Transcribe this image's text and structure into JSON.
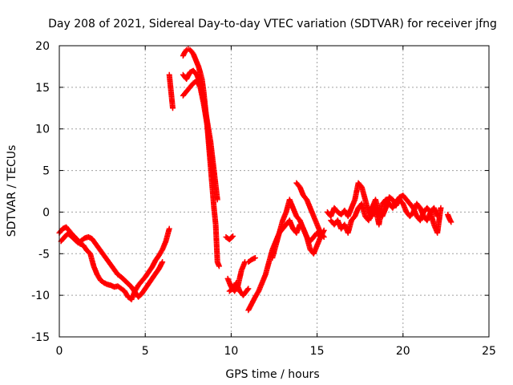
{
  "chart_data": {
    "type": "scatter",
    "title": "Day 208 of 2021, Sidereal Day-to-day VTEC variation (SDTVAR) for receiver jfng",
    "xlabel": "GPS time / hours",
    "ylabel": "SDTVAR / TECUs",
    "xlim": [
      0,
      25
    ],
    "ylim": [
      -15,
      20
    ],
    "xticks": [
      0,
      5,
      10,
      15,
      20,
      25
    ],
    "yticks": [
      -15,
      -10,
      -5,
      0,
      5,
      10,
      15,
      20
    ],
    "grid": true,
    "marker": "+",
    "color": "#ff0000",
    "series": [
      {
        "name": "SDTVAR",
        "segments": [
          {
            "x": [
              0.0,
              0.2,
              0.4,
              0.6,
              0.8,
              1.0,
              1.2,
              1.4,
              1.6,
              1.8,
              2.0,
              2.2,
              2.4,
              2.6,
              2.8,
              3.0,
              3.2,
              3.4,
              3.6,
              3.8,
              4.0,
              4.2,
              4.4,
              4.6,
              4.8,
              5.0,
              5.2,
              5.4,
              5.6,
              5.8,
              6.0,
              6.2,
              6.4
            ],
            "y": [
              -2.5,
              -2.0,
              -1.8,
              -2.3,
              -2.8,
              -3.2,
              -3.8,
              -4.0,
              -4.6,
              -5.0,
              -6.5,
              -7.5,
              -8.2,
              -8.5,
              -8.7,
              -8.8,
              -9.0,
              -8.9,
              -9.2,
              -9.5,
              -10.2,
              -10.5,
              -9.5,
              -8.8,
              -8.3,
              -7.8,
              -7.2,
              -6.6,
              -5.8,
              -5.2,
              -4.5,
              -3.5,
              -2.0
            ]
          },
          {
            "x": [
              0.1,
              0.3,
              0.5,
              0.7,
              0.9,
              1.1,
              1.3,
              1.5,
              1.7,
              1.9,
              3.4,
              3.6,
              3.8,
              4.0,
              4.2,
              4.4,
              4.6,
              4.8,
              5.0,
              5.2,
              5.4,
              5.6,
              5.8,
              6.0
            ],
            "y": [
              -3.5,
              -3.0,
              -2.6,
              -2.9,
              -3.3,
              -3.7,
              -3.4,
              -3.1,
              -3.0,
              -3.2,
              -7.5,
              -7.8,
              -8.2,
              -8.6,
              -9.0,
              -9.6,
              -10.2,
              -9.8,
              -9.2,
              -8.6,
              -8.0,
              -7.4,
              -6.8,
              -6.0
            ]
          },
          {
            "x": [
              6.4,
              6.5,
              6.6
            ],
            "y": [
              16.5,
              14.5,
              12.5
            ]
          },
          {
            "x": [
              7.2,
              7.3,
              7.4,
              7.5,
              7.6,
              7.7,
              7.8,
              7.9,
              8.0,
              8.1,
              8.2,
              8.3,
              8.4,
              8.5,
              8.6,
              8.7,
              8.8,
              8.9,
              9.0,
              9.1,
              9.2,
              9.3
            ],
            "y": [
              18.8,
              19.2,
              19.5,
              19.6,
              19.5,
              19.3,
              19.0,
              18.5,
              18.0,
              17.5,
              16.8,
              16.0,
              14.5,
              12.5,
              10.5,
              8.0,
              5.5,
              3.0,
              0.5,
              -1.5,
              -6.0,
              -6.5
            ]
          },
          {
            "x": [
              7.2,
              7.4,
              7.6,
              7.8,
              8.0,
              8.2,
              8.4,
              8.6,
              8.8,
              9.0,
              9.2
            ],
            "y": [
              16.5,
              16.0,
              16.8,
              17.0,
              16.5,
              15.5,
              13.5,
              11.0,
              8.5,
              5.0,
              1.5
            ]
          },
          {
            "x": [
              7.2,
              7.4,
              7.6,
              7.8,
              8.0,
              8.2,
              8.4,
              8.6,
              8.8,
              9.0
            ],
            "y": [
              14.0,
              14.5,
              15.0,
              15.5,
              15.8,
              15.0,
              13.0,
              10.5,
              7.0,
              3.5
            ]
          },
          {
            "x": [
              9.7,
              9.9,
              10.1
            ],
            "y": [
              -3.0,
              -3.3,
              -2.9
            ]
          },
          {
            "x": [
              9.8,
              10.0,
              10.2,
              10.4,
              10.6,
              10.8
            ],
            "y": [
              -8.0,
              -9.0,
              -9.5,
              -8.8,
              -7.0,
              -6.0
            ]
          },
          {
            "x": [
              9.9,
              10.1,
              10.3,
              10.5,
              10.7,
              11.0
            ],
            "y": [
              -9.5,
              -9.2,
              -8.5,
              -9.5,
              -10.0,
              -9.2
            ]
          },
          {
            "x": [
              11.0,
              11.2,
              11.4,
              11.6,
              11.8,
              12.0,
              12.2,
              12.4,
              12.6,
              12.8,
              13.0,
              13.2,
              13.4,
              13.6,
              13.8,
              14.0,
              14.2,
              14.4,
              14.6,
              14.8,
              15.0,
              15.2,
              15.4
            ],
            "y": [
              -11.8,
              -11.0,
              -10.2,
              -9.5,
              -8.5,
              -7.5,
              -6.0,
              -4.5,
              -3.5,
              -2.5,
              -2.0,
              -1.5,
              -1.0,
              -2.0,
              -2.5,
              -1.5,
              -2.0,
              -3.0,
              -3.5,
              -3.0,
              -2.5,
              -3.0,
              -2.2
            ]
          },
          {
            "x": [
              11.0,
              11.2,
              11.4
            ],
            "y": [
              -6.0,
              -5.7,
              -5.5
            ]
          },
          {
            "x": [
              12.4,
              12.6,
              12.8,
              13.0,
              13.2,
              13.4,
              13.6,
              13.8,
              14.0,
              14.2,
              14.4,
              14.6,
              14.8,
              15.0,
              15.2
            ],
            "y": [
              -5.5,
              -4.0,
              -2.5,
              -1.0,
              0.0,
              1.5,
              0.5,
              -0.5,
              -1.0,
              -2.0,
              -3.0,
              -4.5,
              -5.0,
              -4.0,
              -3.0
            ]
          },
          {
            "x": [
              13.8,
              14.0,
              14.2,
              14.4,
              14.6,
              14.8,
              15.0,
              15.2,
              15.4
            ],
            "y": [
              3.5,
              3.0,
              2.0,
              1.5,
              0.5,
              -0.5,
              -1.5,
              -2.5,
              -3.0
            ]
          },
          {
            "x": [
              15.6,
              15.8,
              16.0,
              16.2,
              16.4,
              16.6,
              16.8,
              17.0,
              17.2,
              17.4,
              17.6,
              17.8,
              18.0,
              18.2,
              18.4,
              18.6,
              18.8,
              19.0,
              19.2,
              19.4,
              19.6,
              19.8,
              20.0,
              20.2,
              20.4,
              20.6,
              20.8,
              21.0,
              21.2,
              21.4,
              21.6,
              21.8,
              22.0,
              22.2
            ],
            "y": [
              0.0,
              -0.5,
              0.5,
              0.0,
              -0.3,
              0.2,
              -0.5,
              0.5,
              1.5,
              3.5,
              3.0,
              1.5,
              0.0,
              -0.5,
              0.5,
              -1.5,
              1.0,
              1.5,
              1.0,
              0.5,
              1.2,
              1.8,
              2.0,
              1.5,
              1.0,
              0.5,
              -0.5,
              -1.0,
              0.0,
              0.5,
              0.0,
              -1.5,
              -2.5,
              0.5
            ]
          },
          {
            "x": [
              15.8,
              16.0,
              16.2,
              16.4,
              16.6,
              16.8,
              17.0,
              17.2,
              17.4,
              17.6,
              17.8,
              18.0,
              18.2,
              18.4,
              18.6,
              18.8,
              19.0,
              19.2,
              19.4,
              19.6,
              19.8,
              20.0,
              20.2,
              20.4,
              20.6,
              20.8,
              21.0,
              21.2,
              21.4,
              21.6,
              21.8,
              22.0
            ],
            "y": [
              -1.0,
              -1.5,
              -1.0,
              -2.0,
              -1.5,
              -2.5,
              -1.0,
              -0.5,
              0.5,
              1.0,
              -0.5,
              -1.0,
              0.5,
              1.5,
              0.0,
              -0.5,
              0.5,
              1.8,
              1.5,
              0.8,
              1.5,
              1.0,
              0.0,
              -0.5,
              0.0,
              1.0,
              0.5,
              -0.5,
              -1.0,
              0.0,
              0.5,
              -0.5
            ]
          },
          {
            "x": [
              22.6,
              22.7,
              22.8
            ],
            "y": [
              -0.3,
              -0.8,
              -1.2
            ]
          }
        ]
      }
    ]
  }
}
